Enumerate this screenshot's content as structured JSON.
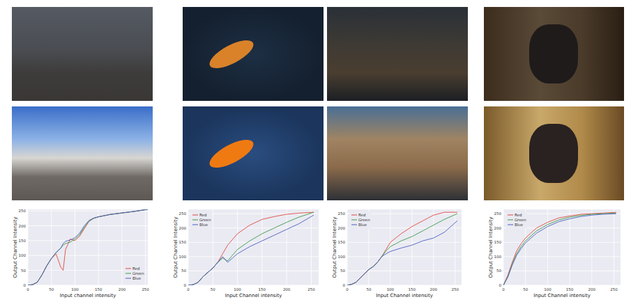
{
  "chart_data": [
    {
      "type": "line",
      "x_label": "Input channel intensity",
      "y_label": "Output Channel Intensity",
      "x": [
        0,
        10,
        20,
        30,
        40,
        50,
        60,
        70,
        75,
        80,
        90,
        100,
        110,
        120,
        130,
        140,
        150,
        175,
        200,
        225,
        255
      ],
      "series": [
        {
          "name": "Red",
          "color": "#e0483f",
          "values": [
            0,
            2,
            10,
            35,
            65,
            90,
            105,
            60,
            50,
            120,
            155,
            150,
            165,
            190,
            215,
            225,
            230,
            238,
            243,
            248,
            255
          ]
        },
        {
          "name": "Green",
          "color": "#3a9a4a",
          "values": [
            0,
            2,
            10,
            35,
            65,
            90,
            110,
            125,
            135,
            140,
            145,
            155,
            170,
            195,
            215,
            225,
            230,
            238,
            243,
            248,
            255
          ]
        },
        {
          "name": "Blue",
          "color": "#4a5fc0",
          "values": [
            0,
            2,
            10,
            35,
            65,
            90,
            110,
            125,
            140,
            148,
            152,
            160,
            175,
            200,
            218,
            226,
            230,
            238,
            243,
            248,
            255
          ]
        }
      ],
      "xlim": [
        0,
        255
      ],
      "ylim": [
        0,
        255
      ],
      "xticks": [
        0,
        50,
        100,
        150,
        200,
        250
      ],
      "yticks": [
        0,
        50,
        100,
        150,
        200,
        250
      ],
      "grid": true,
      "legend": "lower right"
    },
    {
      "type": "line",
      "x_label": "Input Channel intensity",
      "y_label": "Output Channel Intensity",
      "x": [
        0,
        10,
        20,
        30,
        40,
        50,
        60,
        70,
        80,
        90,
        100,
        125,
        150,
        175,
        200,
        225,
        255
      ],
      "series": [
        {
          "name": "Red",
          "color": "#e0483f",
          "values": [
            0,
            2,
            10,
            30,
            45,
            60,
            80,
            110,
            140,
            160,
            180,
            210,
            230,
            240,
            248,
            252,
            255
          ]
        },
        {
          "name": "Green",
          "color": "#3a9a4a",
          "values": [
            0,
            2,
            10,
            30,
            45,
            60,
            80,
            95,
            85,
            105,
            125,
            155,
            180,
            200,
            220,
            238,
            255
          ]
        },
        {
          "name": "Blue",
          "color": "#4a5fc0",
          "values": [
            0,
            2,
            10,
            30,
            45,
            60,
            80,
            100,
            80,
            95,
            110,
            135,
            155,
            175,
            195,
            215,
            245
          ]
        }
      ],
      "xlim": [
        0,
        265
      ],
      "ylim": [
        0,
        265
      ],
      "xticks": [
        0,
        50,
        100,
        150,
        200,
        250
      ],
      "yticks": [
        0,
        50,
        100,
        150,
        200,
        250
      ],
      "grid": true,
      "legend": "upper left"
    },
    {
      "type": "line",
      "x_label": "Input Channel intensity",
      "y_label": "Output Channel Intensity",
      "x": [
        0,
        10,
        20,
        30,
        40,
        50,
        60,
        70,
        80,
        90,
        100,
        125,
        150,
        175,
        200,
        225,
        255
      ],
      "series": [
        {
          "name": "Red",
          "color": "#e0483f",
          "values": [
            0,
            3,
            10,
            25,
            40,
            55,
            65,
            80,
            100,
            125,
            150,
            180,
            205,
            225,
            245,
            255,
            255
          ]
        },
        {
          "name": "Green",
          "color": "#3a9a4a",
          "values": [
            0,
            3,
            10,
            25,
            40,
            55,
            65,
            80,
            100,
            120,
            135,
            155,
            170,
            190,
            210,
            230,
            250
          ]
        },
        {
          "name": "Blue",
          "color": "#4a5fc0",
          "values": [
            0,
            3,
            10,
            25,
            40,
            55,
            65,
            80,
            100,
            110,
            118,
            130,
            140,
            155,
            165,
            185,
            225
          ]
        }
      ],
      "xlim": [
        0,
        265
      ],
      "ylim": [
        0,
        265
      ],
      "xticks": [
        0,
        50,
        100,
        150,
        200,
        250
      ],
      "yticks": [
        0,
        50,
        100,
        150,
        200,
        250
      ],
      "grid": true,
      "legend": "upper left"
    },
    {
      "type": "line",
      "x_label": "Input Channel intensity",
      "y_label": "Output Channel Intensity",
      "x": [
        0,
        10,
        20,
        30,
        40,
        50,
        75,
        100,
        125,
        150,
        175,
        200,
        225,
        255
      ],
      "series": [
        {
          "name": "Red",
          "color": "#e0483f",
          "values": [
            0,
            35,
            80,
            120,
            145,
            165,
            200,
            220,
            235,
            242,
            248,
            250,
            252,
            255
          ]
        },
        {
          "name": "Green",
          "color": "#3a9a4a",
          "values": [
            0,
            30,
            75,
            110,
            135,
            155,
            190,
            212,
            228,
            238,
            244,
            248,
            250,
            252
          ]
        },
        {
          "name": "Blue",
          "color": "#4a5fc0",
          "values": [
            0,
            28,
            70,
            105,
            128,
            148,
            182,
            205,
            222,
            232,
            240,
            245,
            248,
            250
          ]
        }
      ],
      "xlim": [
        0,
        265
      ],
      "ylim": [
        0,
        265
      ],
      "xticks": [
        0,
        50,
        100,
        150,
        200,
        250
      ],
      "yticks": [
        0,
        50,
        100,
        150,
        200,
        250
      ],
      "grid": true,
      "legend": "upper left"
    }
  ]
}
